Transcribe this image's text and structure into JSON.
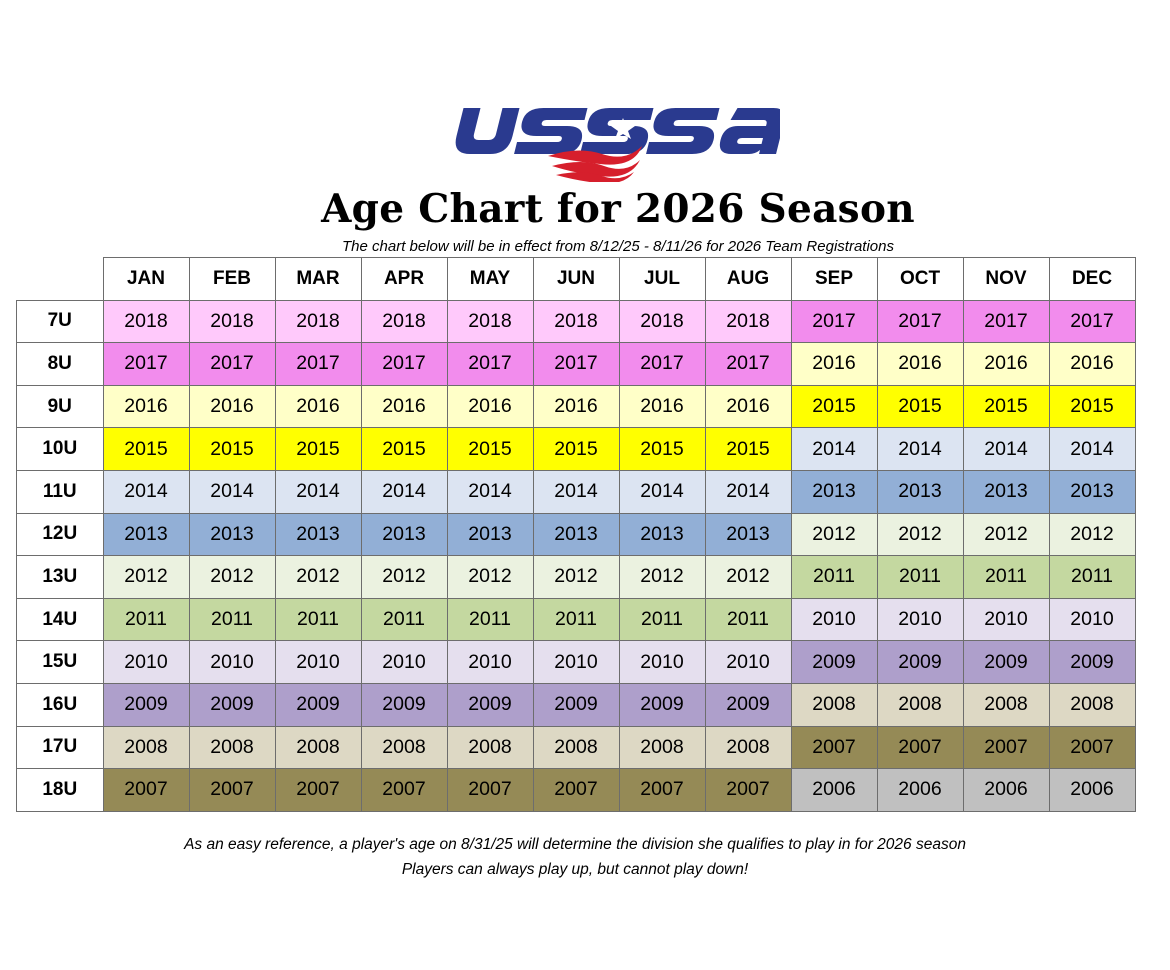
{
  "brand": {
    "logo_text": "USSSA",
    "blue": "#2a3a8f",
    "red": "#d61f2c"
  },
  "header": {
    "title": "Age Chart for 2026 Season",
    "subtitle": "The chart below will be in effect from 8/12/25 - 8/11/26 for 2026 Team Registrations"
  },
  "table": {
    "months": [
      "JAN",
      "FEB",
      "MAR",
      "APR",
      "MAY",
      "JUN",
      "JUL",
      "AUG",
      "SEP",
      "OCT",
      "NOV",
      "DEC"
    ],
    "rows": [
      {
        "label": "7U",
        "years": [
          "2018",
          "2018",
          "2018",
          "2018",
          "2018",
          "2018",
          "2018",
          "2018",
          "2017",
          "2017",
          "2017",
          "2017"
        ]
      },
      {
        "label": "8U",
        "years": [
          "2017",
          "2017",
          "2017",
          "2017",
          "2017",
          "2017",
          "2017",
          "2017",
          "2016",
          "2016",
          "2016",
          "2016"
        ]
      },
      {
        "label": "9U",
        "years": [
          "2016",
          "2016",
          "2016",
          "2016",
          "2016",
          "2016",
          "2016",
          "2016",
          "2015",
          "2015",
          "2015",
          "2015"
        ]
      },
      {
        "label": "10U",
        "years": [
          "2015",
          "2015",
          "2015",
          "2015",
          "2015",
          "2015",
          "2015",
          "2015",
          "2014",
          "2014",
          "2014",
          "2014"
        ]
      },
      {
        "label": "11U",
        "years": [
          "2014",
          "2014",
          "2014",
          "2014",
          "2014",
          "2014",
          "2014",
          "2014",
          "2013",
          "2013",
          "2013",
          "2013"
        ]
      },
      {
        "label": "12U",
        "years": [
          "2013",
          "2013",
          "2013",
          "2013",
          "2013",
          "2013",
          "2013",
          "2013",
          "2012",
          "2012",
          "2012",
          "2012"
        ]
      },
      {
        "label": "13U",
        "years": [
          "2012",
          "2012",
          "2012",
          "2012",
          "2012",
          "2012",
          "2012",
          "2012",
          "2011",
          "2011",
          "2011",
          "2011"
        ]
      },
      {
        "label": "14U",
        "years": [
          "2011",
          "2011",
          "2011",
          "2011",
          "2011",
          "2011",
          "2011",
          "2011",
          "2010",
          "2010",
          "2010",
          "2010"
        ]
      },
      {
        "label": "15U",
        "years": [
          "2010",
          "2010",
          "2010",
          "2010",
          "2010",
          "2010",
          "2010",
          "2010",
          "2009",
          "2009",
          "2009",
          "2009"
        ]
      },
      {
        "label": "16U",
        "years": [
          "2009",
          "2009",
          "2009",
          "2009",
          "2009",
          "2009",
          "2009",
          "2009",
          "2008",
          "2008",
          "2008",
          "2008"
        ]
      },
      {
        "label": "17U",
        "years": [
          "2008",
          "2008",
          "2008",
          "2008",
          "2008",
          "2008",
          "2008",
          "2008",
          "2007",
          "2007",
          "2007",
          "2007"
        ]
      },
      {
        "label": "18U",
        "years": [
          "2007",
          "2007",
          "2007",
          "2007",
          "2007",
          "2007",
          "2007",
          "2007",
          "2006",
          "2006",
          "2006",
          "2006"
        ]
      }
    ],
    "year_colors": {
      "2018": "#ffc9fb",
      "2017": "#f28ced",
      "2016": "#ffffc8",
      "2015": "#ffff00",
      "2014": "#dce4f2",
      "2013": "#92afd6",
      "2012": "#ebf2e0",
      "2011": "#c4d8a0",
      "2010": "#e5dfee",
      "2009": "#ae9fcb",
      "2008": "#ddd8c4",
      "2007": "#958a56",
      "2006": "#c0c0c0"
    }
  },
  "footer": {
    "line1": "As an easy reference, a player's age on 8/31/25 will determine the division she qualifies to play in for 2026 season",
    "line2": "Players can always play up, but cannot play down!"
  }
}
